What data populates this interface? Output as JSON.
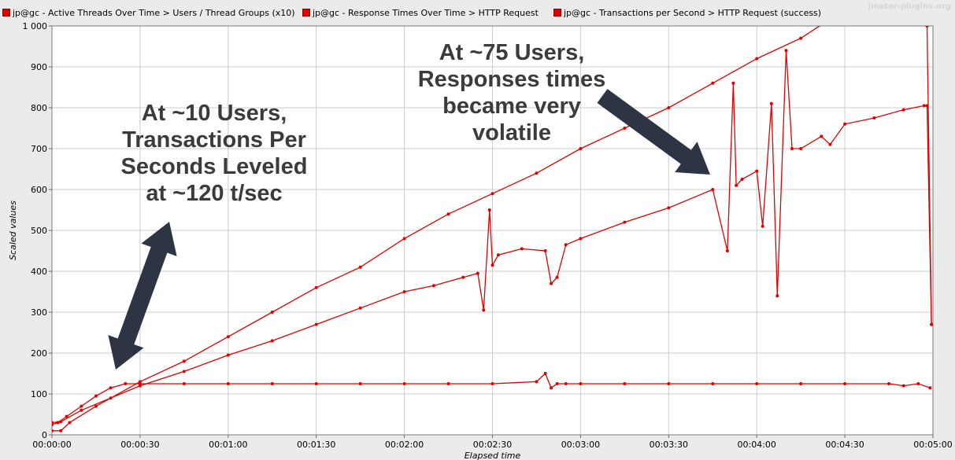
{
  "legend": {
    "series1": "jp@gc - Active Threads Over Time > Users / Thread Groups (x10)",
    "series2": "jp@gc - Response Times Over Time > HTTP Request",
    "series3": "jp@gc - Transactions per Second > HTTP Request (success)",
    "watermark": "jmeter-plugins.org"
  },
  "annotations": {
    "left": [
      "At ~10 Users,",
      "Transactions Per",
      "Seconds Leveled",
      "at ~120 t/sec"
    ],
    "right": [
      "At ~75 Users,",
      "Responses times",
      "became very",
      "volatile"
    ]
  },
  "colors": {
    "series": "#e00000",
    "plot_bg": "#ffffff",
    "grid": "#cccccc",
    "annotation": "#3b3b3b",
    "arrow": "#2d3444"
  },
  "chart_data": {
    "type": "line",
    "xlabel": "Elapsed time",
    "ylabel": "Scaled values",
    "xlim": [
      0,
      300
    ],
    "ylim": [
      0,
      1000
    ],
    "grid": true,
    "legend_position": "top",
    "xticks": [
      0,
      30,
      60,
      90,
      120,
      150,
      180,
      210,
      240,
      270,
      300
    ],
    "xtick_labels": [
      "00:00:00",
      "00:00:30",
      "00:01:00",
      "00:01:30",
      "00:02:00",
      "00:02:30",
      "00:03:00",
      "00:03:30",
      "00:04:00",
      "00:04:30",
      "00:05:00"
    ],
    "yticks": [
      0,
      100,
      200,
      300,
      400,
      500,
      600,
      700,
      800,
      900,
      1000
    ],
    "ytick_labels": [
      "0",
      "100",
      "200",
      "300",
      "400",
      "500",
      "600",
      "700",
      "800",
      "900",
      "1 000"
    ],
    "series": [
      {
        "name": "jp@gc - Active Threads Over Time > Users / Thread Groups (x10)",
        "x": [
          0,
          3,
          6,
          15,
          30,
          45,
          60,
          75,
          90,
          105,
          120,
          135,
          150,
          165,
          180,
          195,
          210,
          225,
          240,
          255,
          270,
          285,
          297,
          298,
          299.5
        ],
        "y": [
          10,
          10,
          30,
          70,
          130,
          180,
          240,
          300,
          360,
          410,
          480,
          540,
          590,
          640,
          700,
          750,
          800,
          860,
          920,
          970,
          1040,
          1110,
          1180,
          1000,
          270
        ]
      },
      {
        "name": "jp@gc - Response Times Over Time > HTTP Request",
        "x": [
          0,
          3,
          10,
          20,
          30,
          45,
          60,
          75,
          90,
          105,
          120,
          130,
          140,
          145,
          147,
          149,
          150,
          152,
          160,
          168,
          170,
          172,
          175,
          180,
          195,
          210,
          225,
          230,
          232,
          233,
          235,
          240,
          242,
          245,
          247,
          250,
          252,
          255,
          262,
          265,
          270,
          280,
          290,
          297,
          298,
          299.5
        ],
        "y": [
          30,
          32,
          60,
          90,
          120,
          155,
          195,
          230,
          270,
          310,
          350,
          365,
          385,
          395,
          305,
          550,
          415,
          440,
          455,
          450,
          370,
          385,
          465,
          480,
          520,
          555,
          600,
          450,
          860,
          610,
          625,
          645,
          510,
          810,
          340,
          940,
          700,
          700,
          730,
          710,
          760,
          775,
          795,
          805,
          805,
          270
        ]
      },
      {
        "name": "jp@gc - Transactions per Second > HTTP Request (success)",
        "x": [
          0,
          2,
          5,
          10,
          15,
          20,
          25,
          30,
          45,
          60,
          75,
          90,
          105,
          120,
          135,
          150,
          165,
          168,
          170,
          172,
          175,
          180,
          195,
          210,
          225,
          240,
          255,
          270,
          285,
          290,
          295,
          299
        ],
        "y": [
          25,
          30,
          45,
          70,
          95,
          115,
          125,
          125,
          125,
          125,
          125,
          125,
          125,
          125,
          125,
          125,
          130,
          150,
          115,
          125,
          125,
          125,
          125,
          125,
          125,
          125,
          125,
          125,
          125,
          120,
          125,
          115
        ]
      }
    ]
  }
}
